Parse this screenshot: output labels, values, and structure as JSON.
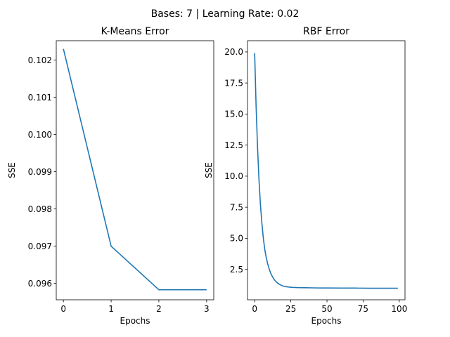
{
  "figure": {
    "suptitle": "Bases: 7 | Learning Rate: 0.02",
    "line_color": "#1f77b4"
  },
  "chart_data": [
    {
      "type": "line",
      "title": "K-Means Error",
      "xlabel": "Epochs",
      "ylabel": "SSE",
      "xlim": [
        -0.15,
        3.15
      ],
      "ylim": [
        0.09556,
        0.10252
      ],
      "xticks": [
        0,
        1,
        2,
        3
      ],
      "xtick_labels": [
        "0",
        "1",
        "2",
        "3"
      ],
      "yticks": [
        0.096,
        0.097,
        0.098,
        0.099,
        0.1,
        0.101,
        0.102
      ],
      "ytick_labels": [
        "0.096",
        "0.097",
        "0.098",
        "0.099",
        "0.100",
        "0.101",
        "0.102"
      ],
      "grid": false,
      "legend": "none",
      "series": [
        {
          "x": [
            0,
            1,
            2,
            3
          ],
          "y": [
            0.1023,
            0.097,
            0.09583,
            0.09583
          ]
        }
      ]
    },
    {
      "type": "line",
      "title": "RBF Error",
      "xlabel": "Epochs",
      "ylabel": "SSE",
      "xlim": [
        -4.95,
        103.95
      ],
      "ylim": [
        0.05,
        20.9
      ],
      "xticks": [
        0,
        25,
        50,
        75,
        100
      ],
      "xtick_labels": [
        "0",
        "25",
        "50",
        "75",
        "100"
      ],
      "yticks": [
        2.5,
        5.0,
        7.5,
        10.0,
        12.5,
        15.0,
        17.5,
        20.0
      ],
      "ytick_labels": [
        "2.5",
        "5.0",
        "7.5",
        "10.0",
        "12.5",
        "15.0",
        "17.5",
        "20.0"
      ],
      "grid": false,
      "legend": "none",
      "series": [
        {
          "x": [
            0,
            1,
            2,
            3,
            4,
            5,
            6,
            7,
            8,
            9,
            10,
            11,
            12,
            13,
            14,
            15,
            16,
            17,
            18,
            19,
            20,
            22,
            24,
            26,
            28,
            30,
            35,
            40,
            45,
            50,
            60,
            70,
            80,
            90,
            99
          ],
          "y": [
            19.9,
            15.6,
            12.3,
            9.7,
            7.7,
            6.2,
            5.0,
            4.1,
            3.45,
            2.95,
            2.55,
            2.22,
            1.97,
            1.77,
            1.61,
            1.48,
            1.38,
            1.3,
            1.24,
            1.19,
            1.15,
            1.1,
            1.07,
            1.05,
            1.04,
            1.03,
            1.02,
            1.01,
            1.0,
            1.0,
            0.99,
            0.99,
            0.98,
            0.98,
            0.98
          ]
        }
      ]
    }
  ]
}
